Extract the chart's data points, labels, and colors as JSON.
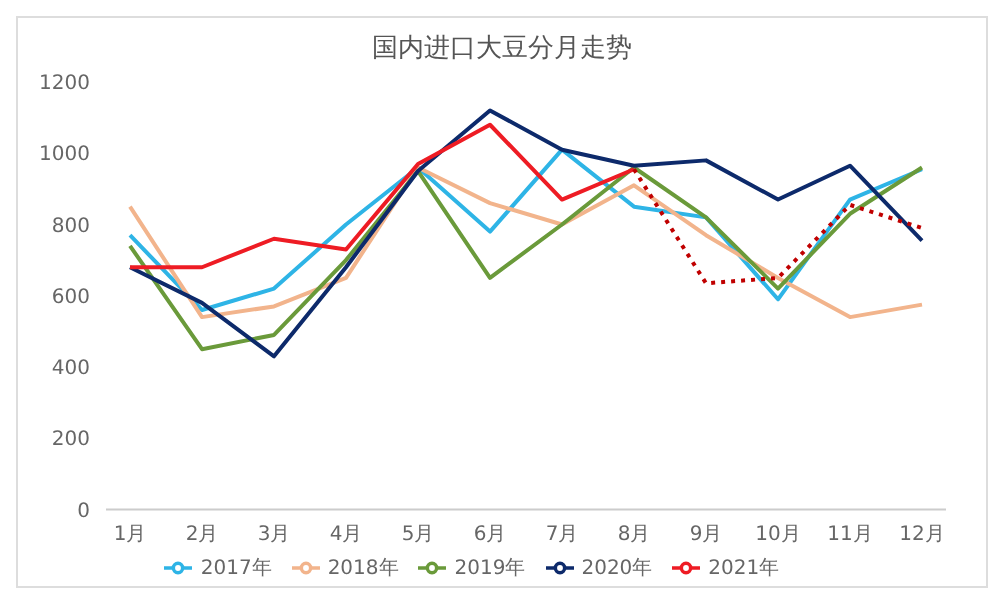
{
  "chart_data": {
    "type": "line",
    "title": "国内进口大豆分月走势",
    "categories": [
      "1月",
      "2月",
      "3月",
      "4月",
      "5月",
      "6月",
      "7月",
      "8月",
      "9月",
      "10月",
      "11月",
      "12月"
    ],
    "series": [
      {
        "name": "2017年",
        "color": "#2eb4e6",
        "values": [
          770,
          560,
          620,
          800,
          960,
          780,
          1010,
          850,
          820,
          590,
          870,
          955
        ]
      },
      {
        "name": "2018年",
        "color": "#f2b48c",
        "values": [
          850,
          540,
          570,
          650,
          960,
          860,
          800,
          910,
          770,
          650,
          540,
          575
        ]
      },
      {
        "name": "2019年",
        "color": "#6a9a3a",
        "values": [
          740,
          450,
          490,
          700,
          950,
          650,
          800,
          960,
          820,
          620,
          830,
          960
        ]
      },
      {
        "name": "2020年",
        "color": "#0d2a6b",
        "values": [
          680,
          580,
          430,
          680,
          950,
          1120,
          1010,
          965,
          980,
          870,
          965,
          755
        ]
      },
      {
        "name": "2021年",
        "color": "#ee1c24",
        "values": [
          680,
          680,
          760,
          730,
          970,
          1080,
          870,
          955,
          null,
          null,
          null,
          null
        ]
      },
      {
        "color": "#c00000",
        "line_style": "dotted",
        "values": [
          null,
          null,
          null,
          null,
          null,
          null,
          null,
          955,
          635,
          650,
          855,
          790
        ]
      }
    ],
    "ylim": [
      0,
      1200
    ],
    "yticks": [
      0,
      200,
      400,
      600,
      800,
      1000,
      1200
    ],
    "legend": "bottom",
    "marker": "none",
    "line_style": "solid"
  }
}
